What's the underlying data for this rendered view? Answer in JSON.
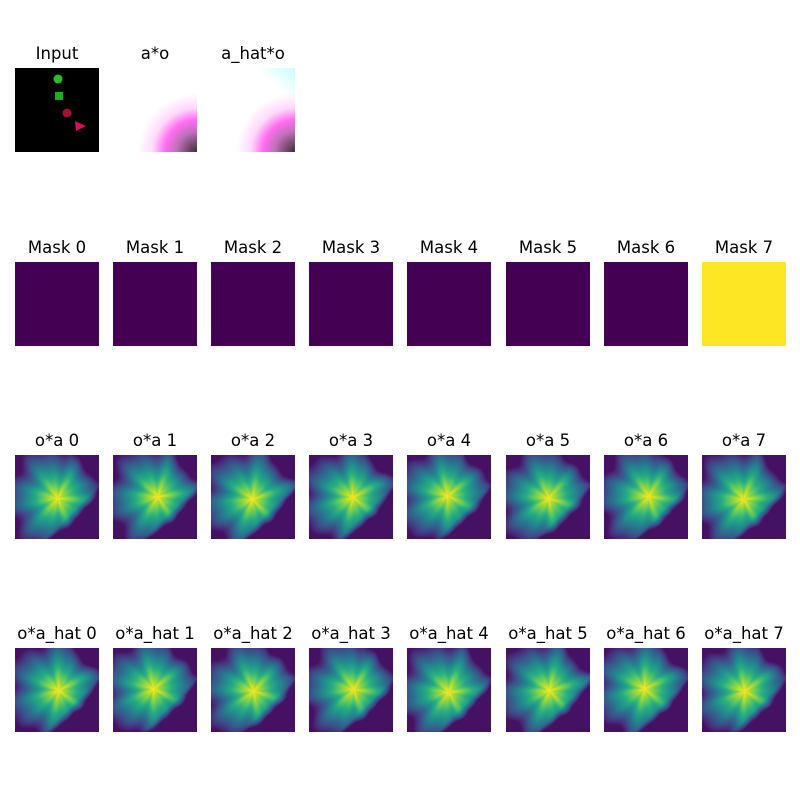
{
  "rows": [
    {
      "name": "input-row",
      "panels": [
        {
          "title": "Input",
          "kind": "input"
        },
        {
          "title": "a*o",
          "kind": "ao"
        },
        {
          "title": "a_hat*o",
          "kind": "ahato"
        }
      ]
    },
    {
      "name": "mask-row",
      "panels": [
        {
          "title": "Mask 0",
          "kind": "mask",
          "value": 0
        },
        {
          "title": "Mask 1",
          "kind": "mask",
          "value": 0
        },
        {
          "title": "Mask 2",
          "kind": "mask",
          "value": 0
        },
        {
          "title": "Mask 3",
          "kind": "mask",
          "value": 0
        },
        {
          "title": "Mask 4",
          "kind": "mask",
          "value": 0
        },
        {
          "title": "Mask 5",
          "kind": "mask",
          "value": 0
        },
        {
          "title": "Mask 6",
          "kind": "mask",
          "value": 0
        },
        {
          "title": "Mask 7",
          "kind": "mask",
          "value": 1
        }
      ]
    },
    {
      "name": "oa-row",
      "panels": [
        {
          "title": "o*a 0",
          "kind": "heat",
          "variant": 0
        },
        {
          "title": "o*a 1",
          "kind": "heat",
          "variant": 1
        },
        {
          "title": "o*a 2",
          "kind": "heat",
          "variant": 2
        },
        {
          "title": "o*a 3",
          "kind": "heat",
          "variant": 3
        },
        {
          "title": "o*a 4",
          "kind": "heat",
          "variant": 4
        },
        {
          "title": "o*a 5",
          "kind": "heat",
          "variant": 5
        },
        {
          "title": "o*a 6",
          "kind": "heat",
          "variant": 6
        },
        {
          "title": "o*a 7",
          "kind": "heat",
          "variant": 7
        }
      ]
    },
    {
      "name": "oahat-row",
      "panels": [
        {
          "title": "o*a_hat 0",
          "kind": "heat",
          "variant": 0
        },
        {
          "title": "o*a_hat 1",
          "kind": "heat",
          "variant": 1
        },
        {
          "title": "o*a_hat 2",
          "kind": "heat",
          "variant": 2
        },
        {
          "title": "o*a_hat 3",
          "kind": "heat",
          "variant": 3
        },
        {
          "title": "o*a_hat 4",
          "kind": "heat",
          "variant": 4
        },
        {
          "title": "o*a_hat 5",
          "kind": "heat",
          "variant": 5
        },
        {
          "title": "o*a_hat 6",
          "kind": "heat",
          "variant": 6
        },
        {
          "title": "o*a_hat 7",
          "kind": "heat",
          "variant": 7
        }
      ]
    }
  ],
  "colors": {
    "mask_off": "#440154",
    "mask_on": "#fde725",
    "input_bg": "#000000",
    "input_circle_green": "#22c02a",
    "input_square_green": "#14b01e",
    "input_circle_red": "#a01030",
    "input_triangle_magenta": "#d0105a",
    "ao_magenta": "#ff6ef2",
    "ahato_cyan": "#c8ffff"
  },
  "colormap": "viridis"
}
